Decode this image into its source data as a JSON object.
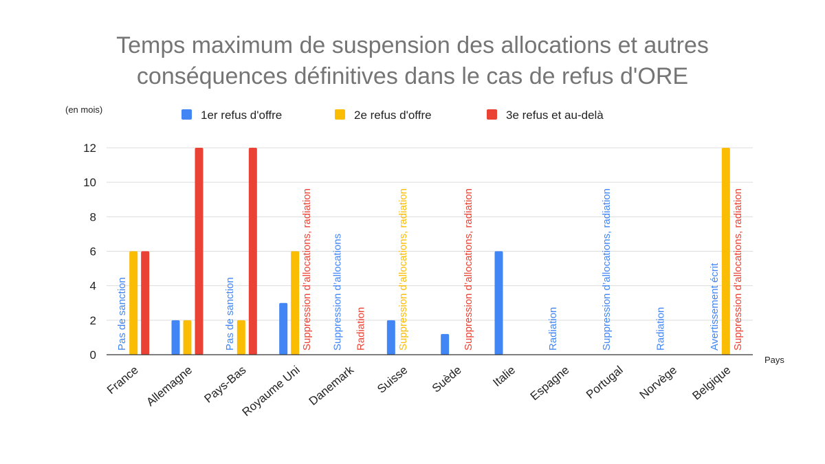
{
  "chart_data": {
    "type": "bar",
    "title": "Temps maximum de suspension des allocations et autres conséquences définitives dans le cas de refus d'ORE",
    "title_lines": [
      "Temps maximum de suspension des allocations et autres",
      "conséquences définitives dans le cas de refus d'ORE"
    ],
    "ylabel": "(en mois)",
    "xlabel": "Pays",
    "ylim": [
      0,
      12
    ],
    "yticks": [
      0,
      2,
      4,
      6,
      8,
      10,
      12
    ],
    "grid": true,
    "legend_position": "top",
    "categories": [
      "France",
      "Allemagne",
      "Pays-Bas",
      "Royaume Uni",
      "Danemark",
      "Suisse",
      "Suède",
      "Italie",
      "Espagne",
      "Portugal",
      "Norvège",
      "Belgique"
    ],
    "series": [
      {
        "name": "1er refus d'offre",
        "color": "#4285F4",
        "values": [
          0,
          2,
          0,
          3,
          0,
          2,
          1.2,
          6,
          0,
          0,
          0,
          0
        ]
      },
      {
        "name": "2e refus d'offre",
        "color": "#FBBC04",
        "values": [
          6,
          2,
          2,
          6,
          0,
          0,
          0,
          0,
          0,
          0,
          0,
          12
        ]
      },
      {
        "name": "3e refus et au-delà",
        "color": "#EA4335",
        "values": [
          6,
          12,
          12,
          0,
          0,
          0,
          0,
          0,
          0,
          0,
          0,
          0
        ]
      }
    ],
    "annotations": [
      {
        "category": 0,
        "series": 0,
        "text": "Pas de sanction"
      },
      {
        "category": 2,
        "series": 0,
        "text": "Pas de sanction"
      },
      {
        "category": 3,
        "series": 2,
        "text": "Suppression d’allocations, radiation"
      },
      {
        "category": 4,
        "series": 0,
        "text": "Suppression d’allocations"
      },
      {
        "category": 4,
        "series": 2,
        "text": "Radiation"
      },
      {
        "category": 5,
        "series": 1,
        "text": "Suppression d’allocations, radiation"
      },
      {
        "category": 6,
        "series": 2,
        "text": "Suppression d’allocations, radiation"
      },
      {
        "category": 8,
        "series": 0,
        "text": "Radiation"
      },
      {
        "category": 9,
        "series": 0,
        "text": "Suppression d’allocations, radiation"
      },
      {
        "category": 10,
        "series": 0,
        "text": "Radiation"
      },
      {
        "category": 11,
        "series": 0,
        "text": "Avertissement écrit"
      },
      {
        "category": 11,
        "series": 2,
        "text": "Suppression d’allocations, radiation"
      }
    ]
  }
}
